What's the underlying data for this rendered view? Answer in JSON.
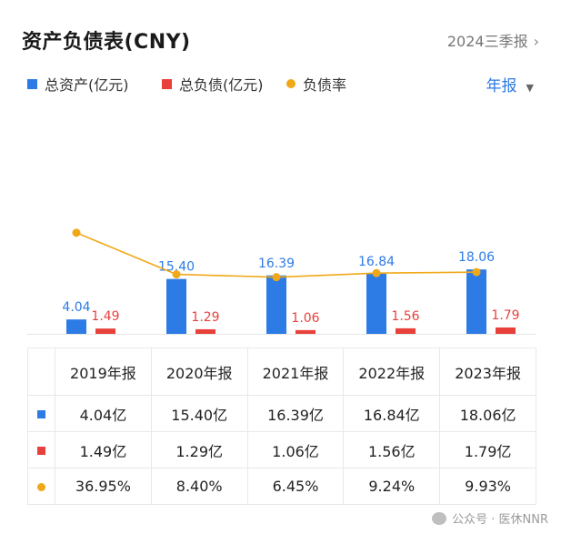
{
  "header": {
    "title": "资产负债表(CNY)",
    "period": "2024三季报",
    "period_chevron": "›"
  },
  "legend": {
    "assets": "总资产(亿元)",
    "liabilities": "总负债(亿元)",
    "ratio": "负债率"
  },
  "frequency": {
    "label": "年报",
    "caret": "▼"
  },
  "colors": {
    "assets": "#2d7be5",
    "liabilities": "#e8413c",
    "ratio": "#f0a818"
  },
  "chart_data": {
    "type": "bar",
    "categories": [
      "2019年报",
      "2020年报",
      "2021年报",
      "2022年报",
      "2023年报"
    ],
    "series": [
      {
        "name": "总资产(亿元)",
        "type": "bar",
        "values": [
          4.04,
          15.4,
          16.39,
          16.84,
          18.06
        ],
        "labels": [
          "4.04",
          "15.40",
          "16.39",
          "16.84",
          "18.06"
        ]
      },
      {
        "name": "总负债(亿元)",
        "type": "bar",
        "values": [
          1.49,
          1.29,
          1.06,
          1.56,
          1.79
        ],
        "labels": [
          "1.49",
          "1.29",
          "1.06",
          "1.56",
          "1.79"
        ]
      },
      {
        "name": "负债率",
        "type": "line",
        "unit": "%",
        "values": [
          36.95,
          8.4,
          6.45,
          9.24,
          9.93
        ]
      }
    ]
  },
  "table": {
    "headers": [
      "2019年报",
      "2020年报",
      "2021年报",
      "2022年报",
      "2023年报"
    ],
    "rows": [
      [
        "4.04亿",
        "15.40亿",
        "16.39亿",
        "16.84亿",
        "18.06亿"
      ],
      [
        "1.49亿",
        "1.29亿",
        "1.06亿",
        "1.56亿",
        "1.79亿"
      ],
      [
        "36.95%",
        "8.40%",
        "6.45%",
        "9.24%",
        "9.93%"
      ]
    ]
  },
  "watermark": {
    "text": "公众号 · 医休NNR"
  }
}
